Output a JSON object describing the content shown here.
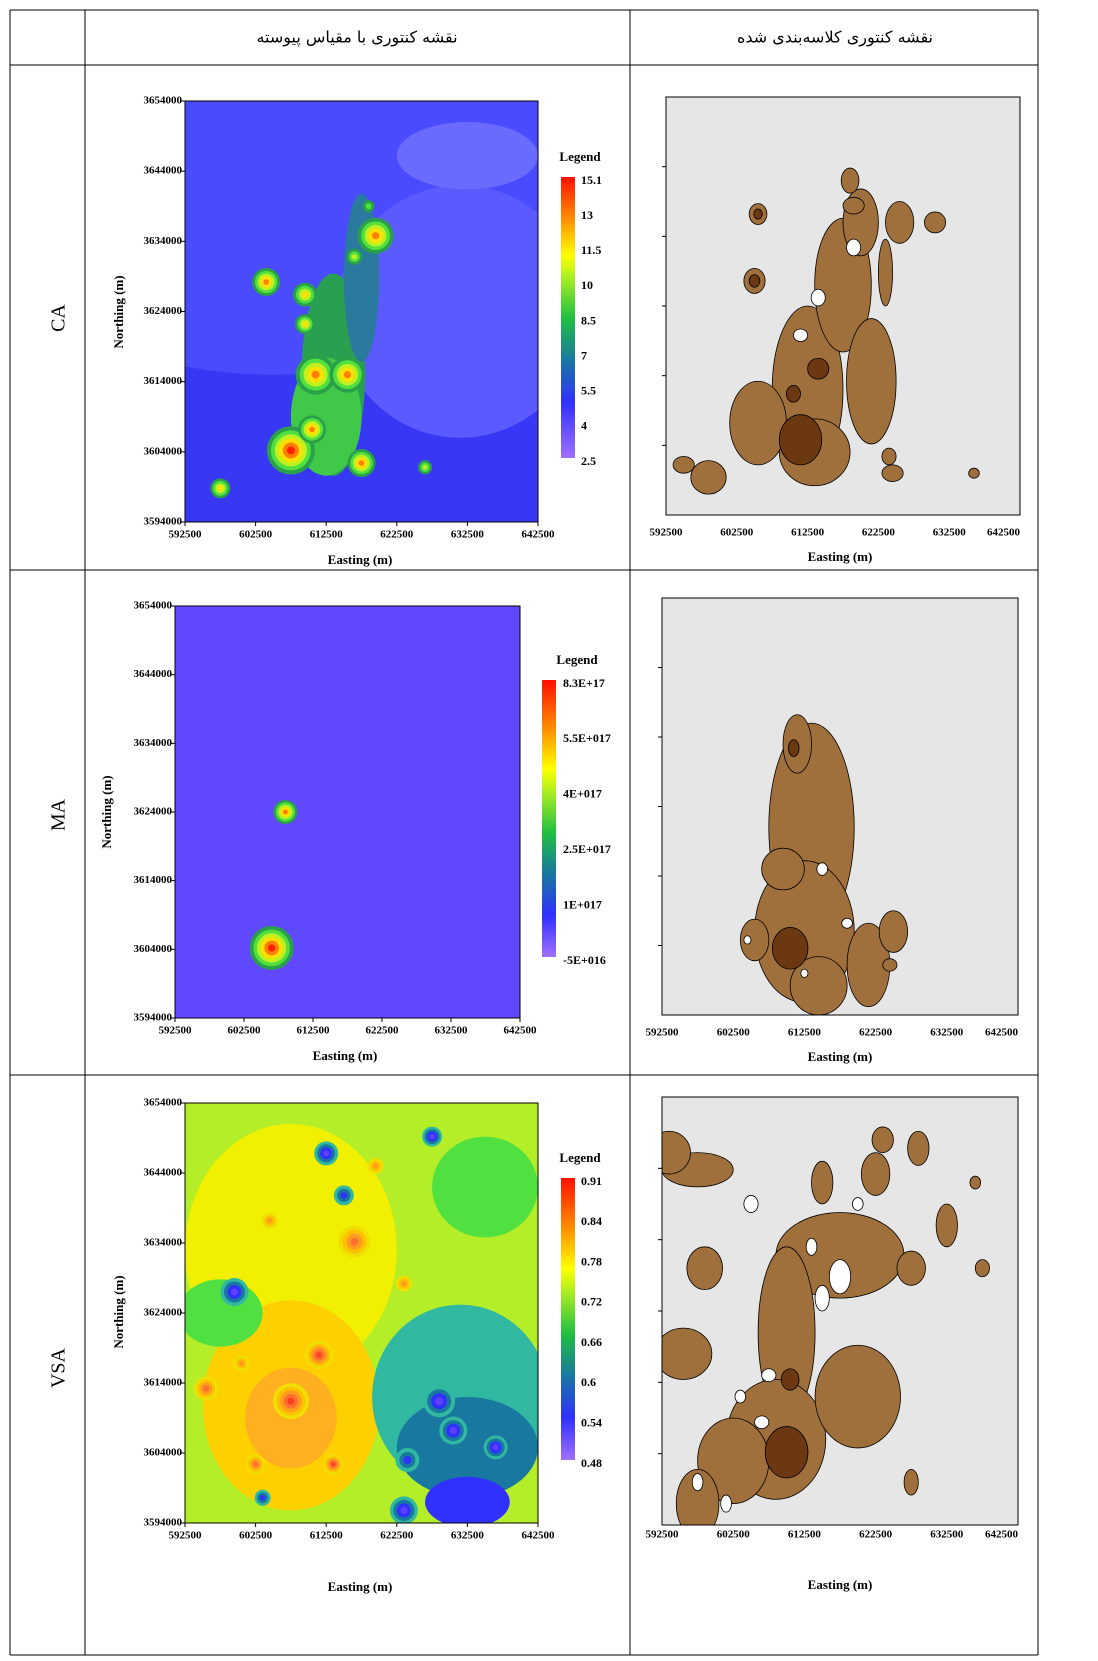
{
  "table": {
    "header": {
      "continuous": "نقشه کنتوری با مقیاس پیوسته",
      "classified": "نقشه کنتوری کلاسه‌بندی شده"
    },
    "rows": [
      {
        "label": "CA",
        "continuous": {
          "legend_title": "Legend",
          "legend_labels": [
            "15.1",
            "13",
            "11.5",
            "10",
            "8.5",
            "7",
            "5.5",
            "4",
            "2.5"
          ],
          "x_label": "Easting (m)",
          "y_label": "Northing (m)",
          "xticks": [
            592500,
            602500,
            612500,
            622500,
            632500,
            642500
          ],
          "yticks": [
            3594000,
            3604000,
            3614000,
            3624000,
            3634000,
            3644000,
            3654000
          ]
        },
        "classified": {
          "x_label": "Easting (m)",
          "xticks": [
            592500,
            602500,
            612500,
            622500,
            632500,
            642500
          ]
        }
      },
      {
        "label": "MA",
        "continuous": {
          "legend_title": "Legend",
          "legend_labels": [
            "8.3E+17",
            "5.5E+017",
            "4E+017",
            "2.5E+017",
            "1E+017",
            "-5E+016"
          ],
          "x_label": "Easting (m)",
          "y_label": "Northing (m)",
          "xticks": [
            592500,
            602500,
            612500,
            622500,
            632500,
            642500
          ],
          "yticks": [
            3594000,
            3604000,
            3614000,
            3624000,
            3634000,
            3644000,
            3654000
          ]
        },
        "classified": {
          "x_label": "Easting (m)",
          "xticks": [
            592500,
            602500,
            612500,
            622500,
            632500,
            642500
          ]
        }
      },
      {
        "label": "VSA",
        "continuous": {
          "legend_title": "Legend",
          "legend_labels": [
            "0.91",
            "0.84",
            "0.78",
            "0.72",
            "0.66",
            "0.6",
            "0.54",
            "0.48"
          ],
          "x_label": "Easting (m)",
          "y_label": "Northing (m)",
          "xticks": [
            592500,
            602500,
            612500,
            622500,
            632500,
            642500
          ],
          "yticks": [
            3594000,
            3604000,
            3614000,
            3624000,
            3634000,
            3644000,
            3654000
          ]
        },
        "classified": {
          "x_label": "Easting (m)",
          "xticks": [
            592500,
            602500,
            612500,
            622500,
            632500,
            642500
          ]
        }
      }
    ]
  }
}
